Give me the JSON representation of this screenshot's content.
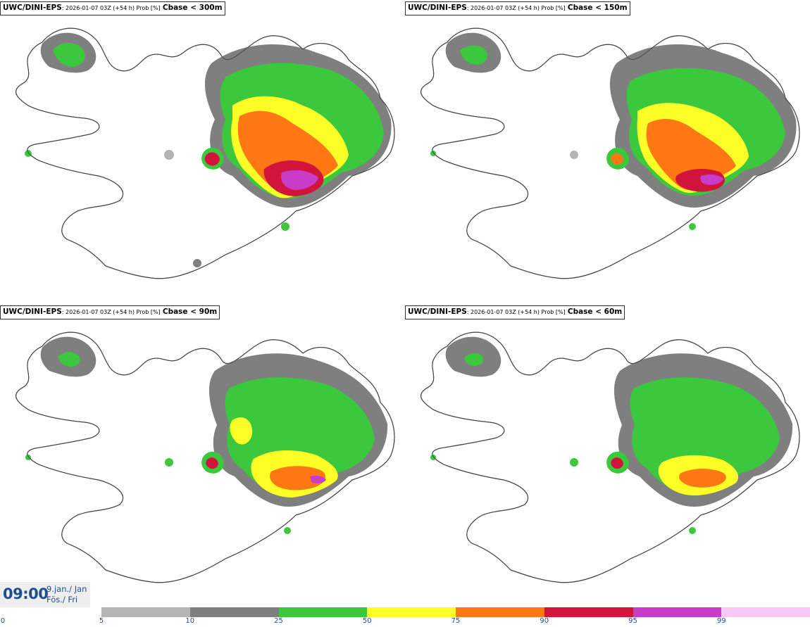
{
  "panels": [
    {
      "model": "UWC/DINI-EPS",
      "meta": ": 2026-01-07 03Z (+54 h) Prob [%]",
      "variable": "Cbase < 300m"
    },
    {
      "model": "UWC/DINI-EPS",
      "meta": ": 2026-01-07 03Z (+54 h) Prob [%]",
      "variable": "Cbase < 150m"
    },
    {
      "model": "UWC/DINI-EPS",
      "meta": ": 2026-01-07 03Z (+54 h) Prob [%]",
      "variable": "Cbase < 90m"
    },
    {
      "model": "UWC/DINI-EPS",
      "meta": ": 2026-01-07 03Z (+54 h) Prob [%]",
      "variable": "Cbase < 60m"
    }
  ],
  "valid_time": {
    "time": "09:00",
    "date_line1": "9.jan./ Jan",
    "date_line2": "Fös./ Fri"
  },
  "legend": {
    "ticks": [
      "0",
      "5",
      "10",
      "25",
      "50",
      "75",
      "90",
      "95",
      "99"
    ],
    "colors": [
      "#b4b4b4",
      "#7f7f7f",
      "#3cc83c",
      "#ffff28",
      "#ff7814",
      "#d2143c",
      "#c83cc8",
      "#f5c8f5"
    ]
  },
  "colors": {
    "outline": "#555555",
    "accent": "#1f4e8c"
  }
}
